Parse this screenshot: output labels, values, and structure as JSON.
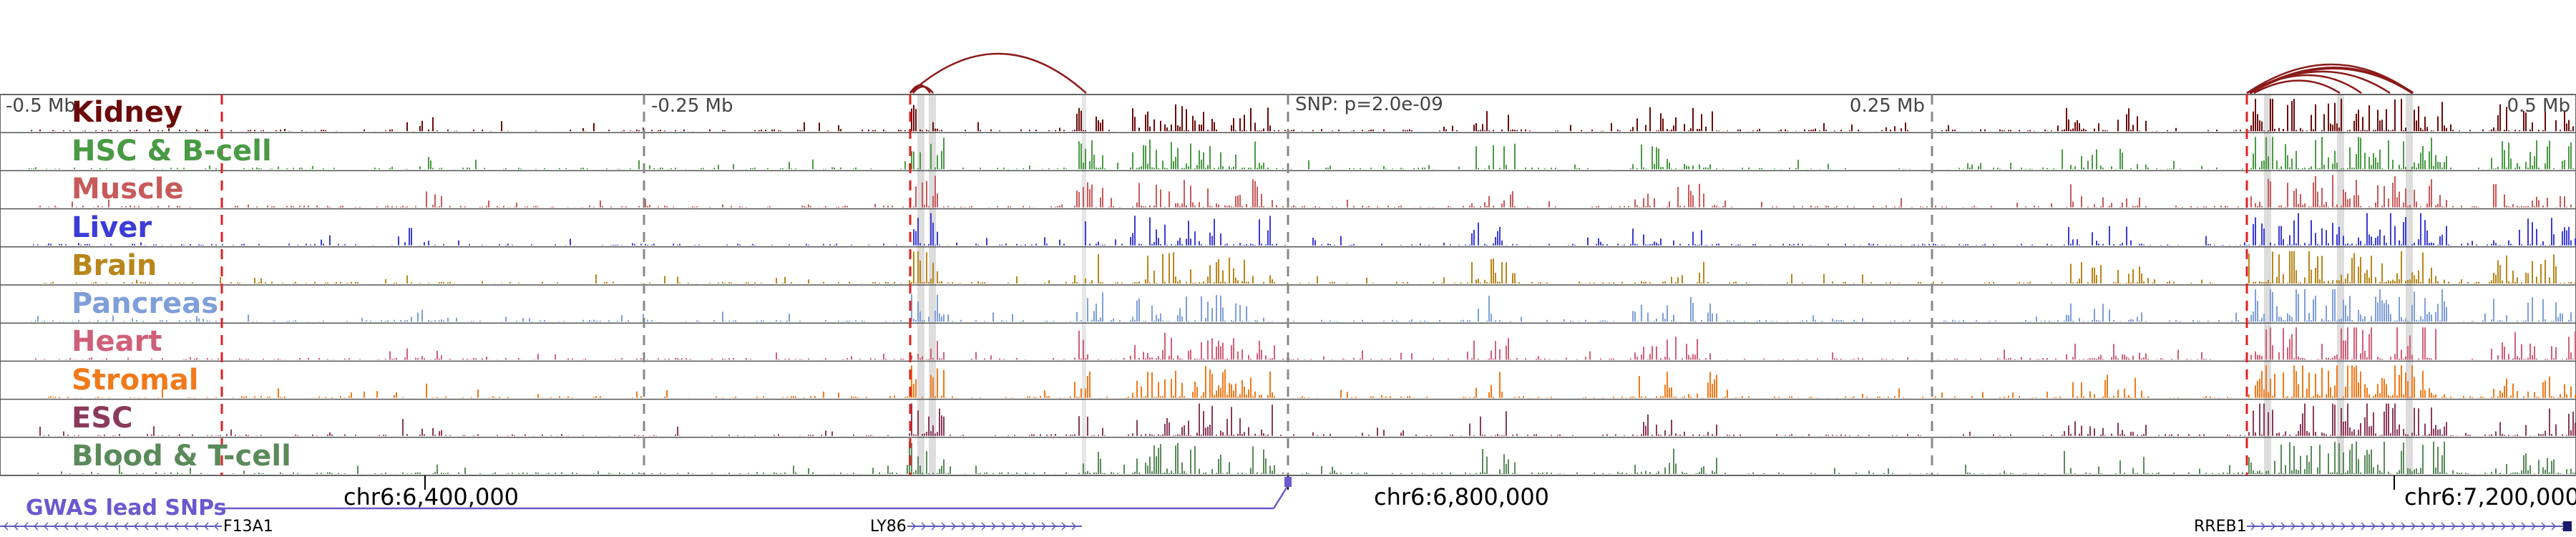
{
  "browser": {
    "tracks": [
      {
        "label": "Kidney",
        "color": "#6b0a0a"
      },
      {
        "label": "HSC & B-cell",
        "color": "#4a9a45"
      },
      {
        "label": "Muscle",
        "color": "#c85a5a"
      },
      {
        "label": "Liver",
        "color": "#3c3cd6"
      },
      {
        "label": "Brain",
        "color": "#b8861a"
      },
      {
        "label": "Pancreas",
        "color": "#7f9fd8"
      },
      {
        "label": "Heart",
        "color": "#d0607a"
      },
      {
        "label": "Stromal",
        "color": "#f07a1a"
      },
      {
        "label": "ESC",
        "color": "#8a3a5a"
      },
      {
        "label": "Blood & T-cell",
        "color": "#5a8a5a"
      }
    ],
    "axis_labels": [
      "-0.5 Mb",
      "-0.25 Mb",
      "SNP: p=2.0e-09",
      "0.25 Mb",
      "0.5 Mb"
    ],
    "coordinates": [
      "chr6:6,400,000",
      "chr6:6,800,000",
      "chr6:7,200,000"
    ],
    "gwas_label": "GWAS lead SNPs",
    "genes": [
      "F13A1",
      "LY86",
      "RREB1"
    ],
    "colors": {
      "link": "#8b1a1a",
      "red_marker": "#e02020",
      "gray_marker": "#888888",
      "highlight": "#cfcfcf",
      "gwas": "#6a5acd",
      "gene": "#5a5ab8"
    }
  }
}
